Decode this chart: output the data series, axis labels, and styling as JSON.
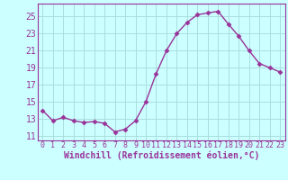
{
  "x": [
    0,
    1,
    2,
    3,
    4,
    5,
    6,
    7,
    8,
    9,
    10,
    11,
    12,
    13,
    14,
    15,
    16,
    17,
    18,
    19,
    20,
    21,
    22,
    23
  ],
  "y": [
    14.0,
    12.8,
    13.2,
    12.8,
    12.6,
    12.7,
    12.5,
    11.5,
    11.8,
    12.8,
    15.0,
    18.3,
    21.0,
    23.0,
    24.3,
    25.2,
    25.4,
    25.6,
    24.1,
    22.7,
    21.0,
    19.5,
    19.0,
    18.5
  ],
  "line_color": "#993399",
  "marker": "D",
  "marker_size": 2.5,
  "bg_color": "#ccffff",
  "grid_color": "#aadddd",
  "xlabel": "Windchill (Refroidissement éolien,°C)",
  "xlim": [
    -0.5,
    23.5
  ],
  "ylim": [
    10.5,
    26.5
  ],
  "yticks": [
    11,
    13,
    15,
    17,
    19,
    21,
    23,
    25
  ],
  "xticks": [
    0,
    1,
    2,
    3,
    4,
    5,
    6,
    7,
    8,
    9,
    10,
    11,
    12,
    13,
    14,
    15,
    16,
    17,
    18,
    19,
    20,
    21,
    22,
    23
  ],
  "tick_color": "#993399",
  "xlabel_fontsize": 7.0,
  "ytick_fontsize": 7.0,
  "xtick_fontsize": 6.0,
  "axis_label_color": "#993399",
  "spine_color": "#993399",
  "linewidth": 1.0
}
